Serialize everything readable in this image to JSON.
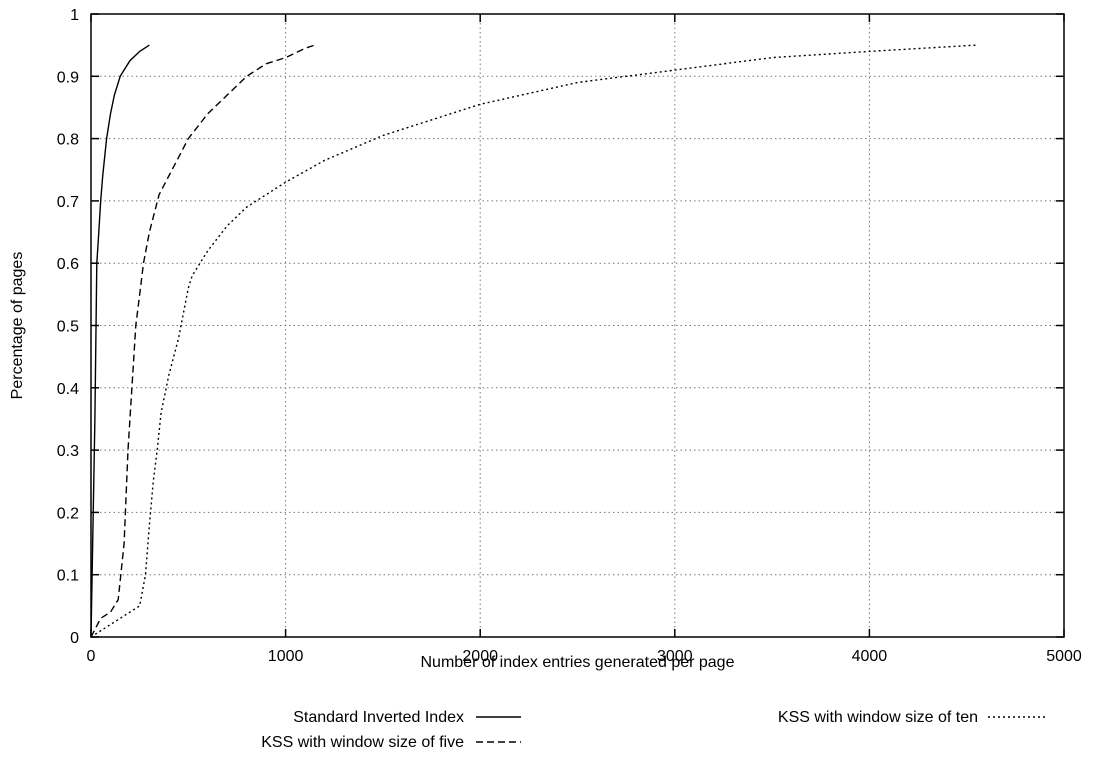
{
  "chart_data": {
    "type": "line",
    "title": "",
    "xlabel": "Number of index entries generated per page",
    "ylabel": "Percentage of pages",
    "xlim": [
      0,
      5000
    ],
    "ylim": [
      0,
      1
    ],
    "xticks": [
      "0",
      "1000",
      "2000",
      "3000",
      "4000",
      "5000"
    ],
    "yticks": [
      "0",
      "0.1",
      "0.2",
      "0.3",
      "0.4",
      "0.5",
      "0.6",
      "0.7",
      "0.8",
      "0.9",
      "1"
    ],
    "grid": true,
    "legend_position": "bottom",
    "series": [
      {
        "name": "Standard Inverted Index",
        "style": "solid",
        "color": "#000000",
        "x": [
          0,
          20,
          30,
          40,
          50,
          60,
          80,
          100,
          120,
          150,
          200,
          250,
          300
        ],
        "y": [
          0,
          0.35,
          0.6,
          0.65,
          0.7,
          0.74,
          0.8,
          0.84,
          0.87,
          0.9,
          0.925,
          0.94,
          0.95
        ]
      },
      {
        "name": "KSS with window size of five",
        "style": "dashed",
        "color": "#000000",
        "x": [
          0,
          50,
          100,
          140,
          170,
          190,
          210,
          230,
          250,
          270,
          300,
          350,
          400,
          450,
          500,
          600,
          700,
          800,
          900,
          1000,
          1100,
          1150
        ],
        "y": [
          0,
          0.03,
          0.04,
          0.06,
          0.15,
          0.3,
          0.4,
          0.5,
          0.55,
          0.6,
          0.65,
          0.71,
          0.74,
          0.77,
          0.8,
          0.84,
          0.87,
          0.9,
          0.92,
          0.93,
          0.945,
          0.95
        ],
        "legend_row": 2
      },
      {
        "name": "KSS with window size of ten",
        "style": "dotted",
        "color": "#000000",
        "x": [
          0,
          100,
          200,
          250,
          280,
          300,
          320,
          340,
          360,
          400,
          450,
          500,
          520,
          600,
          700,
          800,
          1000,
          1200,
          1500,
          2000,
          2500,
          3000,
          3500,
          4000,
          4550
        ],
        "y": [
          0,
          0.02,
          0.04,
          0.05,
          0.1,
          0.18,
          0.25,
          0.3,
          0.36,
          0.42,
          0.48,
          0.56,
          0.58,
          0.62,
          0.66,
          0.69,
          0.73,
          0.765,
          0.805,
          0.855,
          0.89,
          0.91,
          0.93,
          0.94,
          0.95
        ]
      }
    ]
  }
}
